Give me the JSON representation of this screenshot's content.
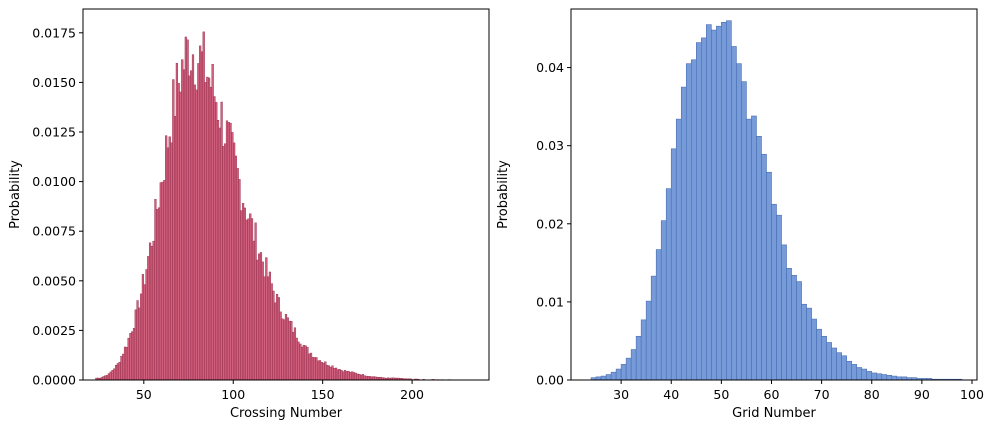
{
  "chart_data": [
    {
      "type": "bar",
      "subtype": "histogram",
      "xlabel": "Crossing Number",
      "ylabel": "Probability",
      "xlim": [
        16,
        243
      ],
      "ylim": [
        0,
        0.0187
      ],
      "xticks": [
        50,
        100,
        150,
        200
      ],
      "yticks": [
        0.0,
        0.0025,
        0.005,
        0.0075,
        0.01,
        0.0125,
        0.015,
        0.0175
      ],
      "ytick_labels": [
        "0.0000",
        "0.0025",
        "0.0050",
        "0.0075",
        "0.0100",
        "0.0125",
        "0.0150",
        "0.0175"
      ],
      "xtick_labels": [
        "50",
        "100",
        "150",
        "200"
      ],
      "grid": false,
      "bar_color": "#c94467",
      "edge_color": "#8f2a47",
      "bins": {
        "x": [
          25,
          30,
          35,
          40,
          45,
          50,
          55,
          60,
          65,
          70,
          75,
          80,
          85,
          90,
          95,
          100,
          105,
          110,
          115,
          120,
          125,
          130,
          135,
          140,
          145,
          150,
          155,
          160,
          165,
          170,
          175,
          180,
          185,
          190,
          195,
          200,
          205,
          210,
          215,
          220,
          225,
          230,
          235
        ],
        "y": [
          0.0001,
          0.0003,
          0.0008,
          0.0018,
          0.0032,
          0.0052,
          0.0076,
          0.0104,
          0.0133,
          0.0155,
          0.0168,
          0.0163,
          0.0155,
          0.0142,
          0.0126,
          0.011,
          0.0093,
          0.0077,
          0.0063,
          0.005,
          0.0038,
          0.003,
          0.0023,
          0.0016,
          0.0012,
          0.0009,
          0.0007,
          0.0005,
          0.0004,
          0.0003,
          0.0002,
          0.00015,
          0.0001,
          0.0001,
          7e-05,
          5e-05,
          4e-05,
          3e-05,
          2e-05,
          2e-05,
          1e-05,
          1e-05,
          1e-05
        ]
      },
      "bin_width": 1
    },
    {
      "type": "bar",
      "subtype": "histogram",
      "xlabel": "Grid Number",
      "ylabel": "Probability",
      "xlim": [
        20,
        101
      ],
      "ylim": [
        0,
        0.0475
      ],
      "xticks": [
        30,
        40,
        50,
        60,
        70,
        80,
        90,
        100
      ],
      "xtick_labels": [
        "30",
        "40",
        "50",
        "60",
        "70",
        "80",
        "90",
        "100"
      ],
      "yticks": [
        0.0,
        0.01,
        0.02,
        0.03,
        0.04
      ],
      "ytick_labels": [
        "0.00",
        "0.01",
        "0.02",
        "0.03",
        "0.04"
      ],
      "grid": false,
      "bar_color": "#6f96d6",
      "edge_color": "#4a6fb5",
      "bins": {
        "x": [
          24,
          25,
          26,
          27,
          28,
          29,
          30,
          31,
          32,
          33,
          34,
          35,
          36,
          37,
          38,
          39,
          40,
          41,
          42,
          43,
          44,
          45,
          46,
          47,
          48,
          49,
          50,
          51,
          52,
          53,
          54,
          55,
          56,
          57,
          58,
          59,
          60,
          61,
          62,
          63,
          64,
          65,
          66,
          67,
          68,
          69,
          70,
          71,
          72,
          73,
          74,
          75,
          76,
          77,
          78,
          79,
          80,
          81,
          82,
          83,
          84,
          85,
          86,
          87,
          88,
          89,
          90,
          91,
          92,
          93,
          94,
          95,
          96,
          97
        ],
        "y": [
          0.0003,
          0.0004,
          0.0005,
          0.0007,
          0.001,
          0.0014,
          0.002,
          0.0028,
          0.0039,
          0.0056,
          0.0077,
          0.0101,
          0.0133,
          0.0167,
          0.0204,
          0.0245,
          0.0296,
          0.0334,
          0.0375,
          0.0405,
          0.041,
          0.0432,
          0.0438,
          0.0455,
          0.0448,
          0.0453,
          0.0458,
          0.046,
          0.0427,
          0.0405,
          0.0382,
          0.0334,
          0.0338,
          0.0312,
          0.0289,
          0.0266,
          0.0225,
          0.0211,
          0.0173,
          0.0143,
          0.0134,
          0.0126,
          0.0097,
          0.0092,
          0.0078,
          0.0065,
          0.0056,
          0.0048,
          0.0041,
          0.0035,
          0.0031,
          0.0024,
          0.002,
          0.0016,
          0.0014,
          0.0011,
          0.0009,
          0.0008,
          0.0007,
          0.0006,
          0.0005,
          0.0004,
          0.0004,
          0.0003,
          0.0003,
          0.0002,
          0.0002,
          0.0002,
          0.0001,
          0.0001,
          0.0001,
          0.0001,
          0.0001,
          0.0001
        ],
        "bin_width": 1
      }
    }
  ]
}
